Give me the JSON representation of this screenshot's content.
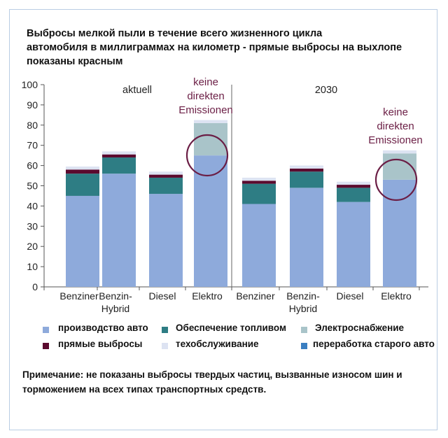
{
  "title_lines": [
    "Выбросы мелкой пыли в течение всего жизненного цикла",
    "автомобиля в миллиграммах на километр - прямые выбросы на выхлопе",
    "показаны красным"
  ],
  "note_lines": [
    "Примечание: не показаны выбросы твердых частиц, вызванные износом шин и",
    "торможением на всех типах транспортных средств."
  ],
  "colors": {
    "production": "#8eaadb",
    "fuel_supply": "#2e7d84",
    "electricity": "#a9c4c9",
    "direct": "#5b0a2e",
    "maintenance": "#dde3f2",
    "recycling": "#3a7fc1",
    "annotation": "#6b1e45"
  },
  "chart_data": {
    "type": "bar",
    "stacked": true,
    "ylim": [
      0,
      100
    ],
    "yticks": [
      0,
      10,
      20,
      30,
      40,
      50,
      60,
      70,
      80,
      90,
      100
    ],
    "groups": [
      {
        "label": "aktuell",
        "categories": [
          "Benziner",
          "Benzin-\nHybrid",
          "Diesel",
          "Elektro"
        ]
      },
      {
        "label": "2030",
        "categories": [
          "Benziner",
          "Benzin-\nHybrid",
          "Diesel",
          "Elektro"
        ]
      }
    ],
    "categories": [
      "Benziner",
      "Benzin-\nHybrid",
      "Diesel",
      "Elektro",
      "Benziner",
      "Benzin-\nHybrid",
      "Diesel",
      "Elektro"
    ],
    "series": [
      {
        "key": "production",
        "name": "производство авто",
        "values": [
          45,
          56,
          46,
          65,
          41,
          49,
          42,
          53
        ]
      },
      {
        "key": "fuel_supply",
        "name": "Обеспечение топливом",
        "values": [
          11,
          8,
          8,
          0,
          10,
          8,
          7,
          0
        ]
      },
      {
        "key": "electricity",
        "name": "Электроснабжение",
        "values": [
          0,
          0,
          0,
          16,
          0,
          0,
          0,
          13
        ]
      },
      {
        "key": "direct",
        "name": "прямые выбросы",
        "values": [
          2,
          1.5,
          1.5,
          0,
          1.5,
          1.5,
          1.5,
          0
        ]
      },
      {
        "key": "maintenance",
        "name": "техобслуживание",
        "values": [
          1.5,
          1.5,
          1.5,
          1.5,
          1.5,
          1.5,
          1.5,
          1.5
        ]
      },
      {
        "key": "recycling",
        "name": "переработка старого авто",
        "values": [
          0,
          0,
          0,
          0,
          0,
          0,
          0,
          0
        ]
      }
    ],
    "annotations": [
      {
        "text": [
          "keine",
          "direkten",
          "Emissionen"
        ],
        "bar_index": 3
      },
      {
        "text": [
          "keine",
          "direkten",
          "Emissionen"
        ],
        "bar_index": 7
      }
    ]
  }
}
